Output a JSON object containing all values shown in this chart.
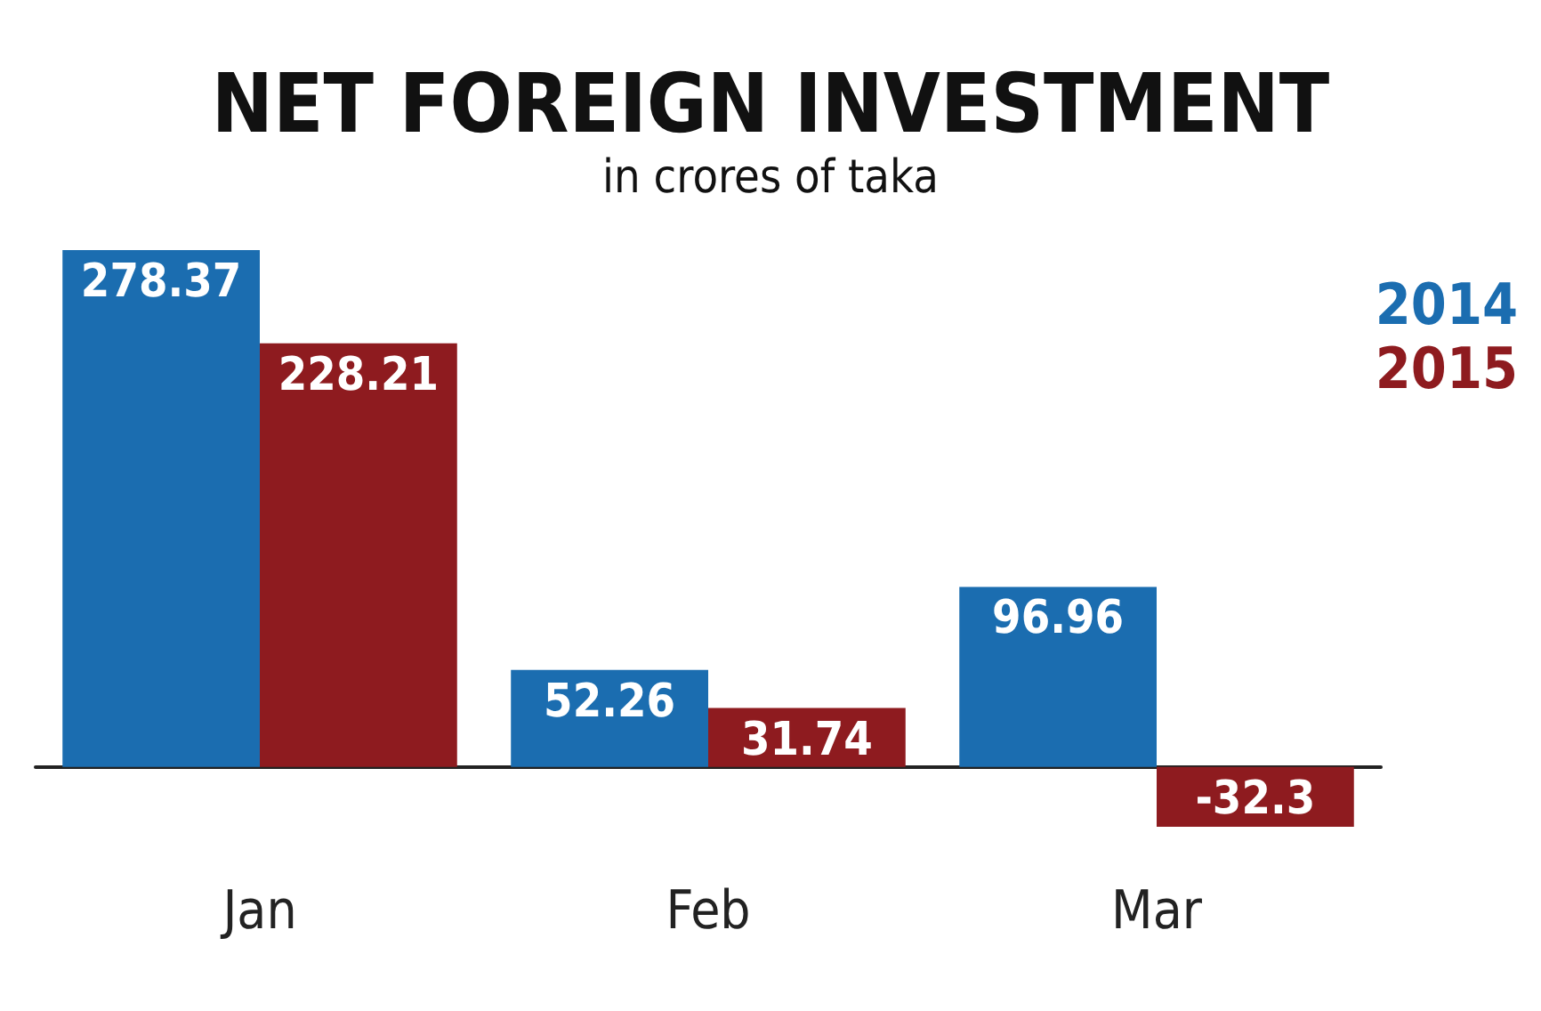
{
  "chart_data": {
    "type": "bar",
    "title": "NET FOREIGN INVESTMENT",
    "subtitle": "in crores of taka",
    "categories": [
      "Jan",
      "Feb",
      "Mar"
    ],
    "series": [
      {
        "name": "2014",
        "color": "#1b6db0",
        "values": [
          278.37,
          52.26,
          96.96
        ]
      },
      {
        "name": "2015",
        "color": "#8e1b1f",
        "values": [
          228.21,
          31.74,
          -32.3
        ]
      }
    ],
    "data_labels": true,
    "legend": "top right"
  }
}
